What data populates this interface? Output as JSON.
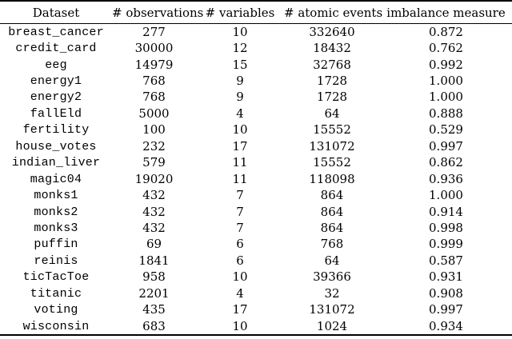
{
  "table": {
    "columns": [
      "Dataset",
      "# observations",
      "# variables",
      "# atomic events",
      "imbalance measure"
    ],
    "rows": [
      [
        "breast_cancer",
        "277",
        "10",
        "332640",
        "0.872"
      ],
      [
        "credit_card",
        "30000",
        "12",
        "18432",
        "0.762"
      ],
      [
        "eeg",
        "14979",
        "15",
        "32768",
        "0.992"
      ],
      [
        "energy1",
        "768",
        "9",
        "1728",
        "1.000"
      ],
      [
        "energy2",
        "768",
        "9",
        "1728",
        "1.000"
      ],
      [
        "fallEld",
        "5000",
        "4",
        "64",
        "0.888"
      ],
      [
        "fertility",
        "100",
        "10",
        "15552",
        "0.529"
      ],
      [
        "house_votes",
        "232",
        "17",
        "131072",
        "0.997"
      ],
      [
        "indian_liver",
        "579",
        "11",
        "15552",
        "0.862"
      ],
      [
        "magic04",
        "19020",
        "11",
        "118098",
        "0.936"
      ],
      [
        "monks1",
        "432",
        "7",
        "864",
        "1.000"
      ],
      [
        "monks2",
        "432",
        "7",
        "864",
        "0.914"
      ],
      [
        "monks3",
        "432",
        "7",
        "864",
        "0.998"
      ],
      [
        "puffin",
        "69",
        "6",
        "768",
        "0.999"
      ],
      [
        "reinis",
        "1841",
        "6",
        "64",
        "0.587"
      ],
      [
        "ticTacToe",
        "958",
        "10",
        "39366",
        "0.931"
      ],
      [
        "titanic",
        "2201",
        "4",
        "32",
        "0.908"
      ],
      [
        "voting",
        "435",
        "17",
        "131072",
        "0.997"
      ],
      [
        "wisconsin",
        "683",
        "10",
        "1024",
        "0.934"
      ]
    ],
    "colors": {
      "text": "#000000",
      "rule": "#000000",
      "background": "#ffffff"
    }
  }
}
